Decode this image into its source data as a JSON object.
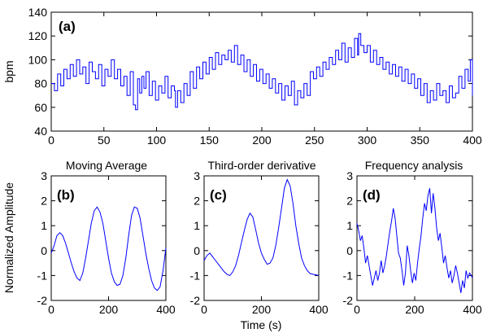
{
  "chart_data": [
    {
      "type": "line",
      "panel": "(a)",
      "title": "",
      "xlabel": "",
      "ylabel": "bpm",
      "xlim": [
        0,
        400
      ],
      "ylim": [
        40,
        140
      ],
      "xticks": [
        0,
        50,
        100,
        150,
        200,
        250,
        300,
        350,
        400
      ],
      "yticks": [
        40,
        60,
        80,
        100,
        120,
        140
      ],
      "step": true,
      "series": [
        {
          "x": [
            0,
            3,
            6,
            9,
            12,
            15,
            18,
            21,
            24,
            27,
            30,
            33,
            36,
            39,
            42,
            45,
            48,
            51,
            54,
            57,
            60,
            63,
            66,
            69,
            72,
            75,
            78,
            80,
            82,
            84,
            86,
            88,
            90,
            93,
            96,
            99,
            102,
            105,
            108,
            111,
            114,
            117,
            118,
            120,
            123,
            126,
            129,
            132,
            135,
            138,
            141,
            144,
            147,
            150,
            153,
            156,
            159,
            162,
            165,
            168,
            171,
            174,
            177,
            180,
            183,
            186,
            189,
            192,
            195,
            198,
            201,
            204,
            207,
            210,
            213,
            216,
            219,
            222,
            225,
            228,
            231,
            234,
            237,
            240,
            243,
            246,
            249,
            252,
            255,
            258,
            261,
            264,
            267,
            270,
            273,
            276,
            279,
            282,
            285,
            288,
            291,
            292,
            294,
            297,
            300,
            303,
            306,
            309,
            312,
            315,
            318,
            321,
            324,
            327,
            330,
            333,
            336,
            339,
            342,
            345,
            348,
            351,
            354,
            357,
            360,
            363,
            366,
            369,
            372,
            375,
            378,
            381,
            384,
            387,
            390,
            393,
            396,
            398,
            400
          ],
          "y": [
            80,
            74,
            88,
            78,
            92,
            84,
            96,
            86,
            100,
            88,
            94,
            80,
            98,
            90,
            84,
            96,
            78,
            92,
            86,
            100,
            84,
            92,
            78,
            86,
            70,
            90,
            62,
            58,
            84,
            72,
            86,
            76,
            90,
            70,
            82,
            66,
            78,
            72,
            86,
            68,
            78,
            74,
            60,
            74,
            64,
            80,
            70,
            90,
            76,
            94,
            84,
            98,
            88,
            102,
            92,
            106,
            96,
            104,
            100,
            108,
            98,
            112,
            96,
            104,
            90,
            100,
            86,
            96,
            82,
            92,
            80,
            88,
            76,
            84,
            72,
            80,
            66,
            78,
            70,
            82,
            62,
            74,
            68,
            80,
            70,
            90,
            84,
            94,
            86,
            98,
            92,
            102,
            96,
            108,
            100,
            114,
            98,
            110,
            102,
            118,
            104,
            122,
            112,
            106,
            112,
            98,
            108,
            96,
            102,
            92,
            98,
            88,
            96,
            86,
            94,
            82,
            92,
            80,
            88,
            76,
            84,
            70,
            80,
            64,
            74,
            66,
            80,
            70,
            74,
            64,
            78,
            68,
            72,
            86,
            76,
            92,
            82,
            100,
            70
          ]
        }
      ]
    },
    {
      "type": "line",
      "panel": "(b)",
      "title": "Moving Average",
      "xlabel": "",
      "ylabel": "Normalized Amplitude",
      "xlim": [
        0,
        400
      ],
      "ylim": [
        -2,
        3
      ],
      "xticks": [
        0,
        200,
        400
      ],
      "yticks": [
        -2,
        -1,
        0,
        1,
        2,
        3
      ],
      "series": [
        {
          "x": [
            0,
            10,
            20,
            30,
            40,
            50,
            60,
            70,
            80,
            90,
            100,
            110,
            120,
            130,
            140,
            150,
            160,
            170,
            180,
            190,
            200,
            210,
            220,
            230,
            240,
            250,
            260,
            270,
            280,
            290,
            300,
            310,
            320,
            330,
            340,
            350,
            360,
            370,
            380,
            390,
            400
          ],
          "y": [
            -0.1,
            0.2,
            0.6,
            0.72,
            0.6,
            0.3,
            -0.1,
            -0.5,
            -0.85,
            -1.1,
            -1.2,
            -0.9,
            -0.3,
            0.4,
            1.1,
            1.6,
            1.75,
            1.55,
            1.1,
            0.4,
            -0.3,
            -0.9,
            -1.25,
            -1.4,
            -1.35,
            -1.0,
            -0.3,
            0.6,
            1.4,
            1.75,
            1.7,
            1.3,
            0.6,
            -0.1,
            -0.7,
            -1.2,
            -1.5,
            -1.6,
            -1.45,
            -0.8,
            0.1
          ]
        }
      ]
    },
    {
      "type": "line",
      "panel": "(c)",
      "title": "Third-order derivative",
      "xlabel": "Time (s)",
      "ylabel": "",
      "xlim": [
        0,
        400
      ],
      "ylim": [
        -2,
        3
      ],
      "xticks": [
        0,
        200,
        400
      ],
      "yticks": [
        -2,
        -1,
        0,
        1,
        2,
        3
      ],
      "series": [
        {
          "x": [
            0,
            10,
            20,
            30,
            40,
            50,
            60,
            70,
            80,
            90,
            100,
            110,
            120,
            130,
            140,
            150,
            160,
            170,
            180,
            190,
            200,
            210,
            220,
            230,
            240,
            250,
            260,
            270,
            280,
            290,
            300,
            310,
            320,
            330,
            340,
            350,
            360,
            370,
            380,
            390,
            400
          ],
          "y": [
            -0.4,
            -0.2,
            -0.1,
            -0.25,
            -0.4,
            -0.55,
            -0.7,
            -0.85,
            -0.95,
            -1.0,
            -0.85,
            -0.6,
            -0.2,
            0.3,
            0.8,
            1.25,
            1.5,
            1.35,
            0.85,
            0.3,
            -0.1,
            -0.35,
            -0.55,
            -0.5,
            -0.3,
            0.2,
            0.9,
            1.7,
            2.5,
            2.85,
            2.6,
            1.9,
            1.0,
            0.3,
            -0.3,
            -0.6,
            -0.8,
            -0.92,
            -0.95,
            -0.97,
            -1.0
          ]
        }
      ]
    },
    {
      "type": "line",
      "panel": "(d)",
      "title": "Frequency analysis",
      "xlabel": "",
      "ylabel": "",
      "xlim": [
        0,
        400
      ],
      "ylim": [
        -2,
        3
      ],
      "xticks": [
        0,
        200,
        400
      ],
      "yticks": [
        -2,
        -1,
        0,
        1,
        2,
        3
      ],
      "series": [
        {
          "x": [
            0,
            6,
            12,
            18,
            24,
            30,
            36,
            42,
            48,
            54,
            60,
            66,
            72,
            78,
            84,
            90,
            96,
            102,
            108,
            114,
            120,
            126,
            132,
            138,
            144,
            150,
            156,
            162,
            168,
            174,
            180,
            186,
            192,
            198,
            204,
            210,
            216,
            222,
            228,
            234,
            240,
            246,
            252,
            258,
            264,
            270,
            276,
            282,
            288,
            294,
            300,
            306,
            312,
            318,
            324,
            330,
            336,
            342,
            348,
            354,
            360,
            366,
            372,
            378,
            384,
            390,
            396,
            400
          ],
          "y": [
            1.1,
            0.8,
            0.4,
            0.6,
            0.1,
            -0.5,
            -0.2,
            -0.6,
            -1.0,
            -1.4,
            -1.1,
            -0.8,
            -1.2,
            -0.9,
            -0.4,
            -0.9,
            -0.6,
            -0.2,
            0.3,
            0.8,
            1.2,
            1.7,
            1.3,
            0.6,
            -0.1,
            -0.3,
            -0.8,
            -1.4,
            -0.9,
            0.2,
            -0.2,
            -0.8,
            -1.3,
            -0.9,
            -1.2,
            -0.5,
            0.1,
            0.6,
            1.3,
            1.9,
            1.6,
            2.2,
            2.5,
            1.5,
            2.3,
            1.7,
            0.9,
            0.4,
            0.7,
            0.1,
            -0.5,
            -0.2,
            -0.7,
            -1.1,
            -0.8,
            -1.3,
            -1.0,
            -0.6,
            -0.9,
            -1.3,
            -1.7,
            -1.2,
            -1.5,
            -0.8,
            -1.1,
            -0.9,
            -1.0,
            -1.1
          ]
        }
      ]
    }
  ]
}
